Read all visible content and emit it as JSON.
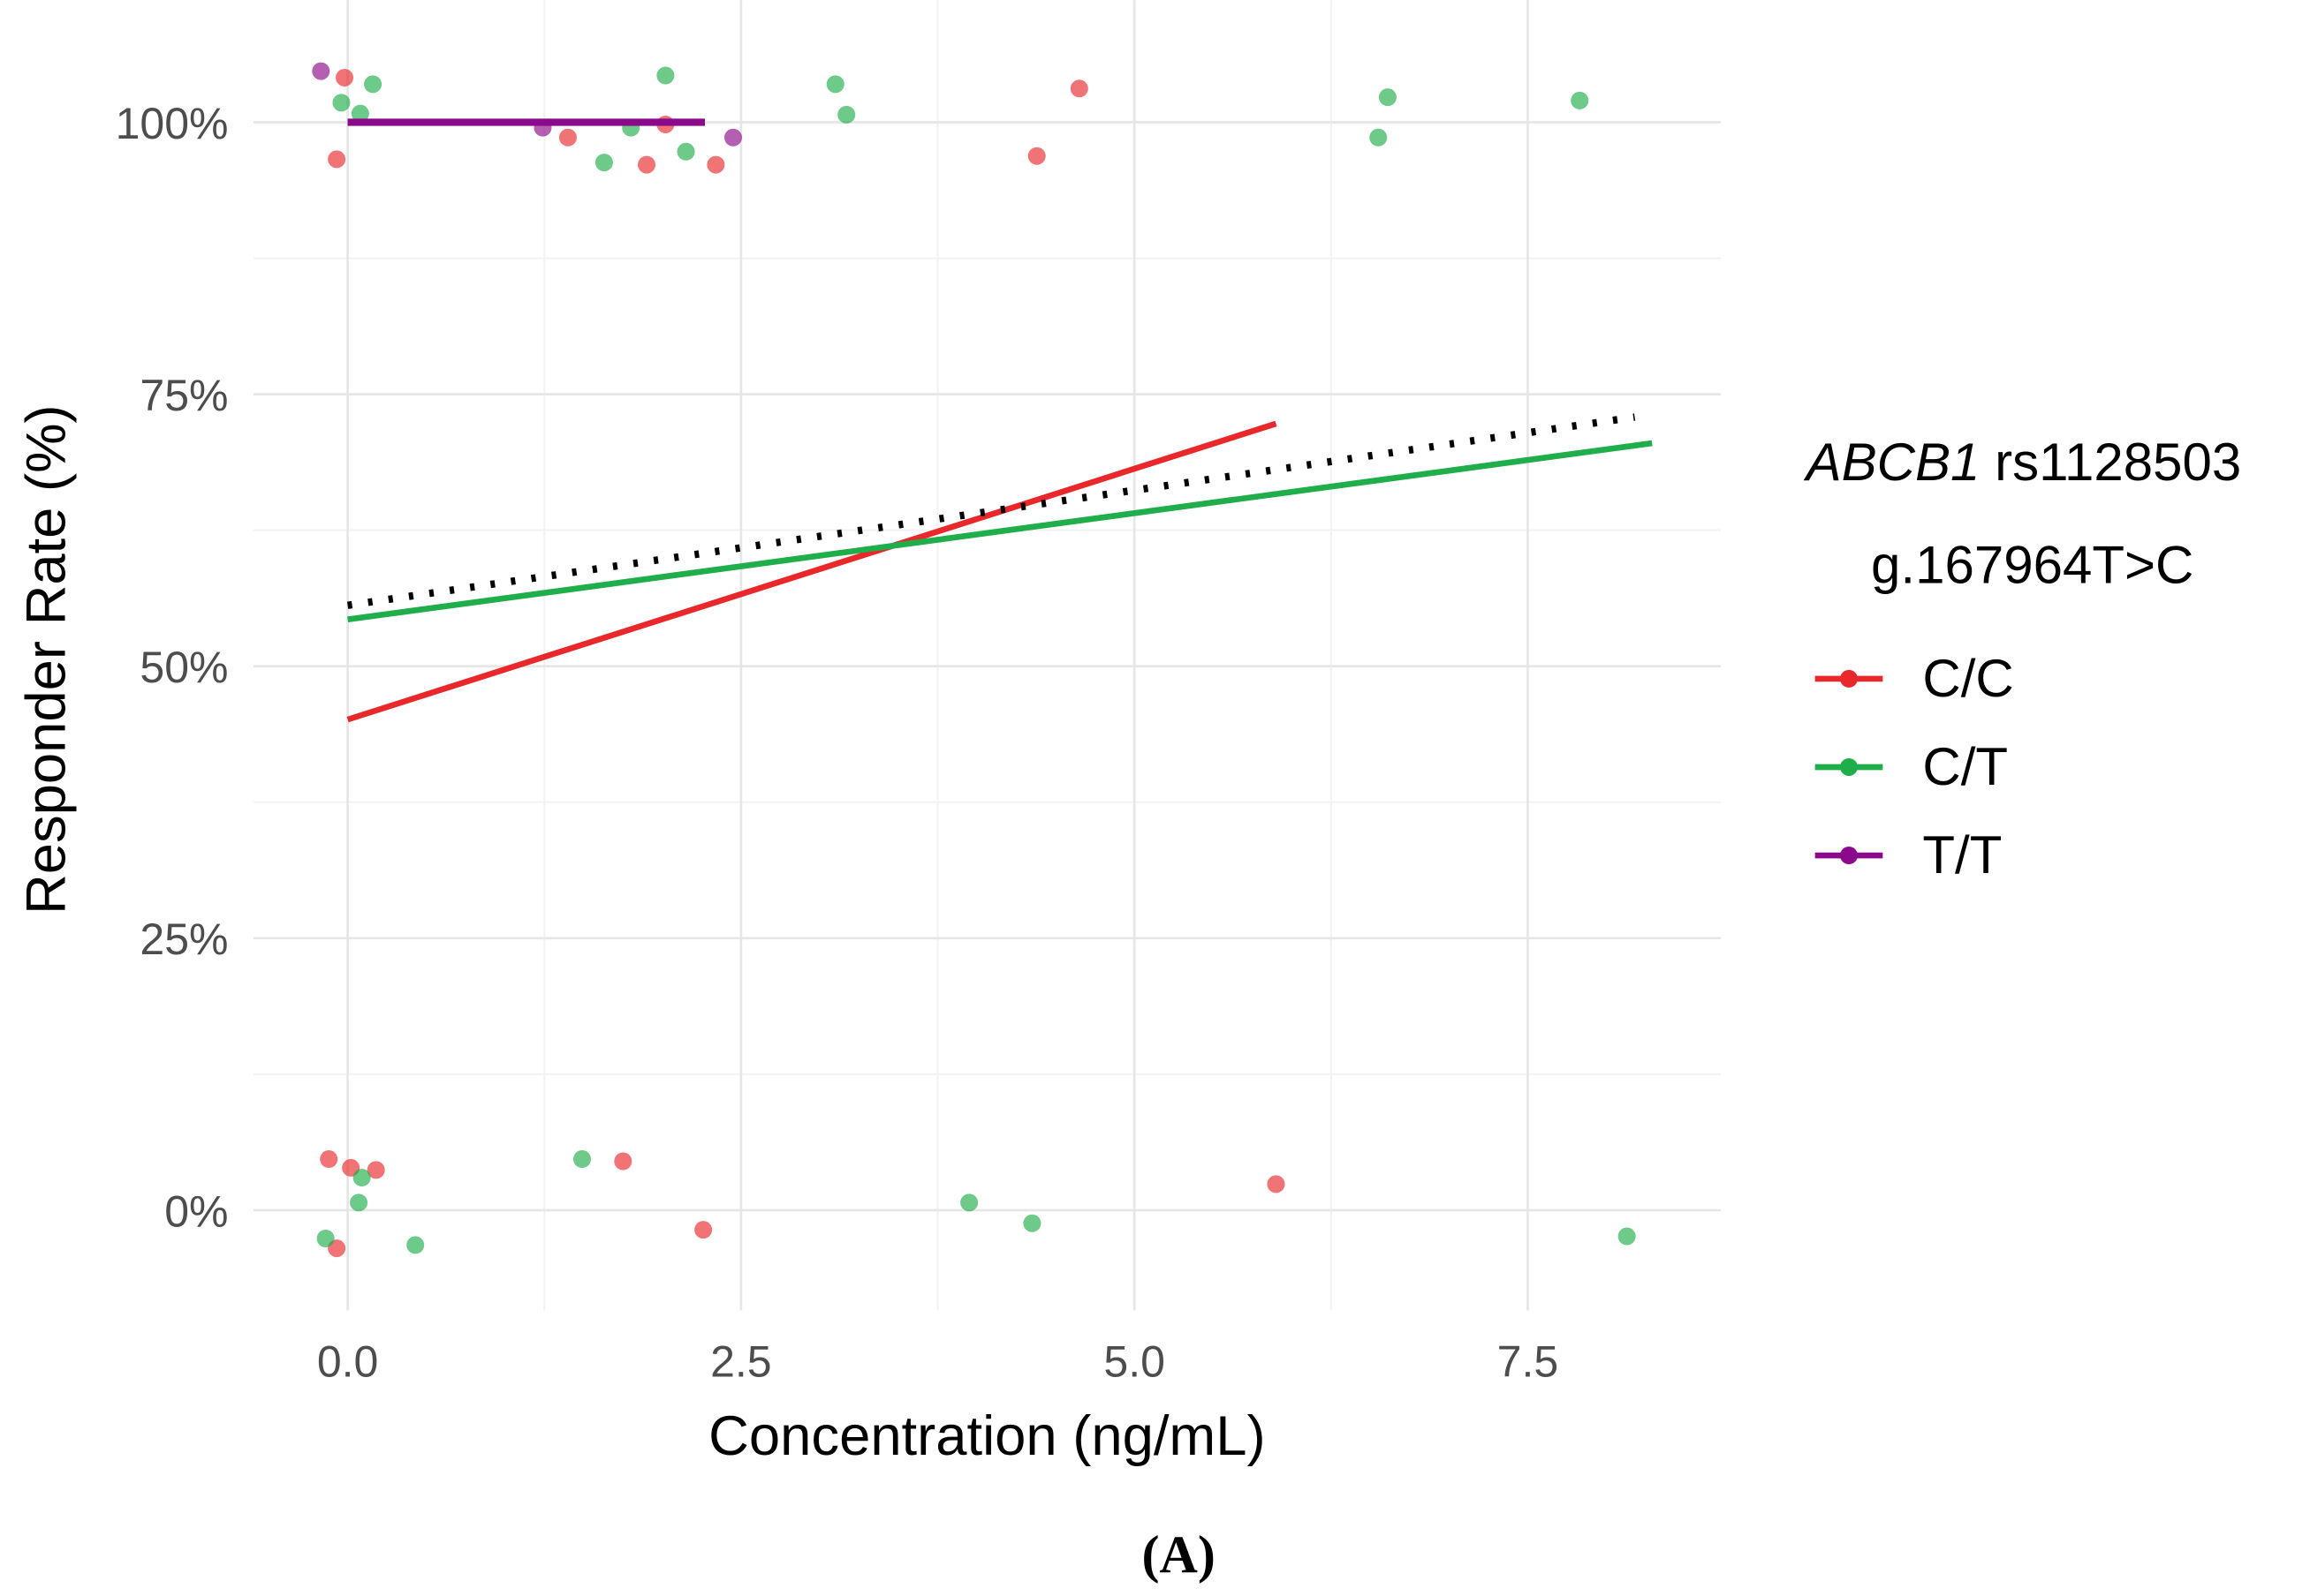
{
  "chart_data": {
    "type": "scatter",
    "title": "",
    "xlabel": "Concentration (ng/mL)",
    "ylabel": "Responder Rate (%)",
    "xlim": [
      -0.6,
      8.73
    ],
    "ylim": [
      -9.2,
      111
    ],
    "x_ticks": [
      0,
      2.5,
      5,
      7.5
    ],
    "x_tick_labels": [
      "0.0",
      "2.5",
      "5.0",
      "7.5"
    ],
    "y_ticks": [
      0,
      25,
      50,
      75,
      100
    ],
    "y_tick_labels": [
      "0%",
      "25%",
      "50%",
      "75%",
      "100%"
    ],
    "grid": true,
    "legend": {
      "placement": "right",
      "title_italic": "ABCB1",
      "title_rest": " rs1128503",
      "subtitle": "g.167964T>C",
      "entries": [
        "C/C",
        "C/T",
        "T/T"
      ]
    },
    "colors": {
      "C/C": "#e8282b",
      "C/T": "#1fae4a",
      "T/T": "#8b0a8b",
      "overall": "#000000"
    },
    "series": [
      {
        "name": "C/C",
        "points": [
          [
            -0.02,
            104.1
          ],
          [
            -0.07,
            96.6
          ],
          [
            1.4,
            98.6
          ],
          [
            1.9,
            96.1
          ],
          [
            2.02,
            99.8
          ],
          [
            2.34,
            96.1
          ],
          [
            4.38,
            96.9
          ],
          [
            4.65,
            103.1
          ],
          [
            -0.12,
            4.7
          ],
          [
            0.02,
            3.9
          ],
          [
            0.18,
            3.7
          ],
          [
            -0.07,
            -3.5
          ],
          [
            1.75,
            4.5
          ],
          [
            2.26,
            -1.8
          ],
          [
            5.9,
            2.4
          ]
        ],
        "fit": [
          [
            0,
            45.1
          ],
          [
            5.9,
            72.3
          ]
        ]
      },
      {
        "name": "C/T",
        "points": [
          [
            0.16,
            103.5
          ],
          [
            -0.04,
            101.8
          ],
          [
            0.08,
            100.8
          ],
          [
            1.63,
            96.3
          ],
          [
            1.8,
            99.5
          ],
          [
            2.02,
            104.3
          ],
          [
            2.15,
            97.3
          ],
          [
            3.1,
            103.5
          ],
          [
            3.17,
            100.7
          ],
          [
            6.55,
            98.6
          ],
          [
            6.61,
            102.3
          ],
          [
            7.83,
            102.0
          ],
          [
            0.09,
            3.0
          ],
          [
            0.07,
            0.7
          ],
          [
            -0.14,
            -2.6
          ],
          [
            0.43,
            -3.2
          ],
          [
            1.49,
            4.7
          ],
          [
            3.95,
            0.7
          ],
          [
            4.35,
            -1.2
          ],
          [
            8.13,
            -2.4
          ]
        ],
        "fit": [
          [
            0,
            54.3
          ],
          [
            8.29,
            70.5
          ]
        ]
      },
      {
        "name": "T/T",
        "points": [
          [
            -0.17,
            104.7
          ],
          [
            1.24,
            99.5
          ],
          [
            2.45,
            98.6
          ]
        ],
        "fit": [
          [
            0,
            100
          ],
          [
            2.27,
            100
          ]
        ]
      },
      {
        "name": "overall",
        "points": [],
        "fit": [
          [
            0,
            55.6
          ],
          [
            8.18,
            72.9
          ]
        ]
      }
    ]
  },
  "caption": "(A)"
}
